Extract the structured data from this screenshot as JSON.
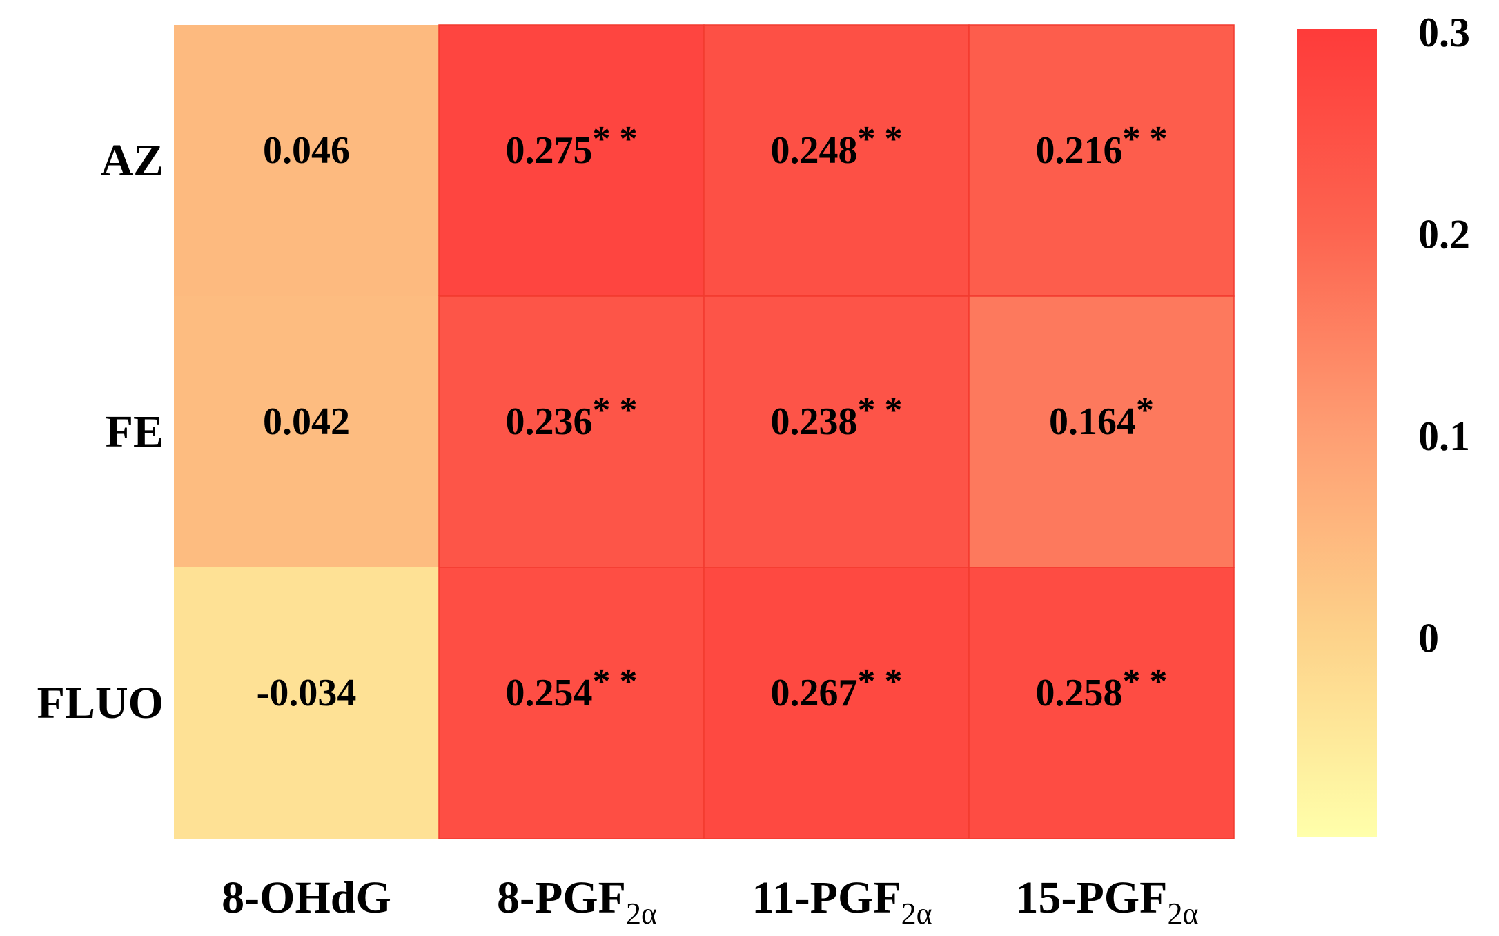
{
  "chart_data": {
    "type": "heatmap",
    "rows": [
      "AZ",
      "FE",
      "FLUO"
    ],
    "columns": [
      {
        "base": "8-OHdG",
        "sub": ""
      },
      {
        "base": "8-PGF",
        "sub": "2α"
      },
      {
        "base": "11-PGF",
        "sub": "2α"
      },
      {
        "base": "15-PGF",
        "sub": "2α"
      }
    ],
    "values": [
      [
        0.046,
        0.275,
        0.248,
        0.216
      ],
      [
        0.042,
        0.236,
        0.238,
        0.164
      ],
      [
        -0.034,
        0.254,
        0.267,
        0.258
      ]
    ],
    "cell_labels": [
      [
        {
          "value": "0.046",
          "stars": ""
        },
        {
          "value": "0.275",
          "stars": "**"
        },
        {
          "value": "0.248",
          "stars": "**"
        },
        {
          "value": "0.216",
          "stars": "**"
        }
      ],
      [
        {
          "value": "0.042",
          "stars": ""
        },
        {
          "value": "0.236",
          "stars": "**"
        },
        {
          "value": "0.238",
          "stars": "**"
        },
        {
          "value": "0.164",
          "stars": "*"
        }
      ],
      [
        {
          "value": "-0.034",
          "stars": ""
        },
        {
          "value": "0.254",
          "stars": "**"
        },
        {
          "value": "0.267",
          "stars": "**"
        },
        {
          "value": "0.258",
          "stars": "**"
        }
      ]
    ],
    "colorbar": {
      "range": [
        -0.1,
        0.3
      ],
      "ticks": [
        {
          "value": 0.3,
          "label": "0.3"
        },
        {
          "value": 0.2,
          "label": "0.2"
        },
        {
          "value": 0.1,
          "label": "0.1"
        },
        {
          "value": 0,
          "label": "0"
        }
      ],
      "colors": [
        "#ffffaa",
        "#fdd28a",
        "#fe9e73",
        "#fd6450",
        "#fe3b3a"
      ]
    },
    "grid": true,
    "legend": "right"
  }
}
